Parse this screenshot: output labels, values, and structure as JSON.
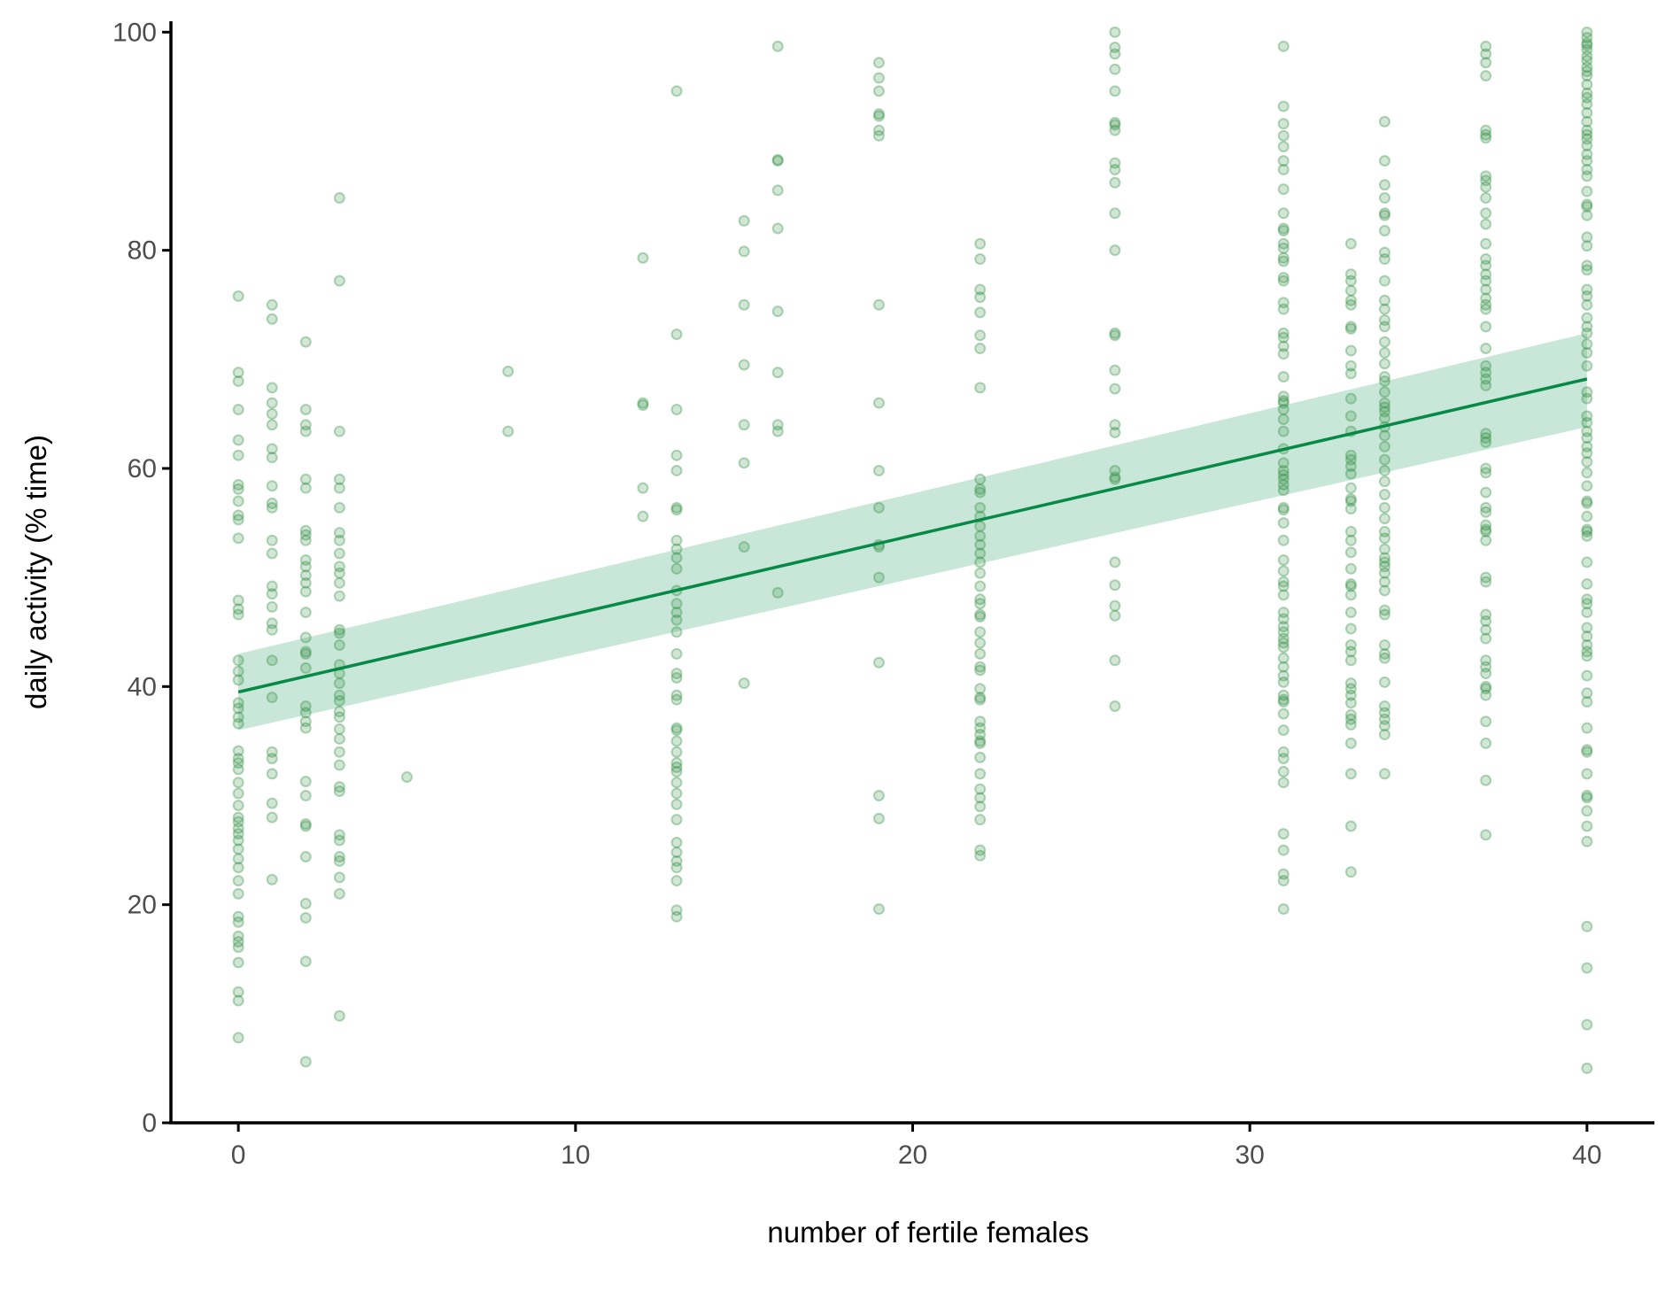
{
  "chart_data": {
    "type": "scatter",
    "title": "",
    "xlabel": "number of fertile females",
    "ylabel": "daily activity (% time)",
    "xlim": [
      -2,
      42
    ],
    "ylim": [
      0,
      101
    ],
    "x_ticks": [
      0,
      10,
      20,
      30,
      40
    ],
    "x_tick_labels": [
      "0",
      "10",
      "20",
      "30",
      "40"
    ],
    "y_ticks": [
      0,
      20,
      40,
      60,
      80,
      100
    ],
    "y_tick_labels": [
      "0",
      "20",
      "40",
      "60",
      "80",
      "100"
    ],
    "grid": false,
    "legend": "none",
    "colors": {
      "points": "#2e8b3e",
      "fit_line": "#078a47",
      "confidence_band": "#bfe3d1"
    },
    "fit": {
      "type": "linear",
      "x": [
        0,
        40
      ],
      "y": [
        39.5,
        68.2
      ],
      "ci_lower": [
        36.0,
        63.8
      ],
      "ci_upper": [
        43.0,
        72.4
      ]
    },
    "points": [
      {
        "x": 0,
        "y": [
          75.8,
          68.8,
          68.0,
          65.4,
          62.6,
          61.2,
          58.5,
          58.1,
          57.0,
          55.7,
          55.3,
          53.6,
          47.9,
          47.1,
          46.6,
          42.4,
          41.4,
          40.6,
          38.5,
          38.0,
          37.2,
          36.6,
          34.1,
          33.4,
          33.0,
          32.4,
          31.2,
          30.2,
          29.1,
          28.0,
          27.6,
          27.0,
          26.5,
          25.9,
          25.1,
          24.2,
          23.4,
          22.2,
          21.0,
          18.9,
          18.4,
          17.1,
          16.6,
          16.1,
          14.7,
          12.0,
          11.2,
          7.8
        ]
      },
      {
        "x": 1,
        "y": [
          75.0,
          73.7,
          67.4,
          66.0,
          65.0,
          64.0,
          61.8,
          61.0,
          58.4,
          56.8,
          56.4,
          53.4,
          52.2,
          49.2,
          48.5,
          47.3,
          45.8,
          45.2,
          42.4,
          39.0,
          34.0,
          33.4,
          32.0,
          29.3,
          28.0,
          22.3
        ]
      },
      {
        "x": 2,
        "y": [
          71.6,
          65.4,
          64.0,
          63.4,
          59.0,
          58.2,
          54.3,
          53.9,
          53.4,
          51.6,
          51.0,
          50.2,
          49.5,
          48.7,
          46.8,
          44.5,
          43.2,
          43.0,
          41.7,
          38.2,
          37.6,
          36.8,
          36.2,
          31.3,
          30.0,
          27.4,
          27.2,
          24.4,
          20.1,
          18.8,
          14.8,
          5.6
        ]
      },
      {
        "x": 3,
        "y": [
          84.8,
          77.2,
          63.4,
          59.0,
          58.2,
          56.4,
          54.1,
          53.4,
          52.2,
          51.0,
          50.4,
          49.5,
          48.3,
          45.2,
          44.9,
          43.8,
          42.0,
          41.2,
          40.3,
          39.2,
          38.7,
          37.7,
          37.2,
          36.1,
          35.2,
          34.0,
          32.8,
          30.8,
          30.4,
          26.4,
          25.9,
          24.4,
          24.0,
          22.5,
          21.0,
          9.8
        ]
      },
      {
        "x": 5,
        "y": [
          31.7
        ]
      },
      {
        "x": 8,
        "y": [
          68.9,
          63.4
        ]
      },
      {
        "x": 12,
        "y": [
          79.3,
          66.0,
          65.8,
          58.2,
          55.6
        ]
      },
      {
        "x": 13,
        "y": [
          94.6,
          72.3,
          65.4,
          61.2,
          59.8,
          56.4,
          56.2,
          53.4,
          52.6,
          51.8,
          50.8,
          48.8,
          47.6,
          46.8,
          46.1,
          45.0,
          43.0,
          41.2,
          40.8,
          39.2,
          38.8,
          36.2,
          36.0,
          35.0,
          34.0,
          33.0,
          32.6,
          32.2,
          31.2,
          30.2,
          29.2,
          27.8,
          25.7,
          24.8,
          24.0,
          23.4,
          22.2,
          19.5,
          18.9
        ]
      },
      {
        "x": 15,
        "y": [
          82.7,
          79.9,
          75.0,
          69.5,
          64.0,
          60.5,
          52.8,
          40.3
        ]
      },
      {
        "x": 16,
        "y": [
          98.7,
          88.3,
          88.2,
          85.5,
          82.0,
          74.4,
          68.8,
          64.0,
          63.4,
          48.6
        ]
      },
      {
        "x": 19,
        "y": [
          97.2,
          95.8,
          94.6,
          92.3,
          92.5,
          91.0,
          90.5,
          75.0,
          66.0,
          59.8,
          56.4,
          53.0,
          52.8,
          50.0,
          42.2,
          30.0,
          27.9,
          19.6
        ]
      },
      {
        "x": 22,
        "y": [
          80.6,
          79.2,
          76.4,
          75.7,
          74.3,
          72.2,
          71.0,
          67.4,
          59.0,
          58.1,
          57.8,
          56.4,
          55.6,
          54.7,
          53.8,
          53.0,
          52.2,
          51.4,
          50.4,
          49.2,
          48.0,
          47.6,
          46.6,
          46.4,
          45.0,
          44.0,
          43.0,
          41.8,
          41.5,
          39.8,
          39.0,
          38.8,
          36.8,
          36.2,
          35.6,
          35.0,
          34.8,
          33.5,
          32.0,
          30.6,
          29.8,
          29.0,
          27.8,
          25.0,
          24.5
        ]
      },
      {
        "x": 26,
        "y": [
          100.0,
          98.6,
          98.0,
          96.6,
          94.6,
          91.7,
          91.5,
          91.0,
          88.0,
          87.4,
          86.2,
          83.4,
          80.0,
          72.2,
          72.4,
          69.0,
          67.3,
          64.0,
          63.3,
          59.8,
          59.2,
          59.0,
          51.4,
          49.3,
          47.4,
          46.5,
          42.4,
          38.2
        ]
      },
      {
        "x": 31,
        "y": [
          98.7,
          93.2,
          91.6,
          90.5,
          89.5,
          88.2,
          87.4,
          85.6,
          83.4,
          82.0,
          81.8,
          80.6,
          80.2,
          79.3,
          79.0,
          77.5,
          77.2,
          75.2,
          74.6,
          72.4,
          72.0,
          71.2,
          70.5,
          68.4,
          66.6,
          66.2,
          66.0,
          65.4,
          64.5,
          63.4,
          61.8,
          60.5,
          59.8,
          59.4,
          59.0,
          58.5,
          58.0,
          56.2,
          56.4,
          55.0,
          53.4,
          51.6,
          50.6,
          49.6,
          49.2,
          48.4,
          46.8,
          46.2,
          45.5,
          45.0,
          44.4,
          44.0,
          43.6,
          42.6,
          41.8,
          41.0,
          40.4,
          39.2,
          38.8,
          38.6,
          37.5,
          36.0,
          34.0,
          33.4,
          32.2,
          31.2,
          26.5,
          25.0,
          22.8,
          22.2,
          19.6
        ]
      },
      {
        "x": 33,
        "y": [
          80.6,
          77.8,
          77.2,
          76.3,
          75.4,
          75.0,
          73.0,
          72.8,
          70.8,
          69.4,
          68.7,
          66.4,
          64.8,
          63.4,
          61.2,
          60.8,
          60.2,
          59.5,
          58.2,
          57.2,
          57.0,
          56.3,
          54.2,
          53.4,
          52.3,
          50.8,
          49.4,
          49.2,
          48.4,
          46.8,
          45.3,
          43.8,
          43.2,
          42.4,
          40.3,
          39.8,
          39.2,
          38.5,
          37.4,
          37.0,
          36.5,
          34.8,
          32.0,
          27.2,
          23.0
        ]
      },
      {
        "x": 34,
        "y": [
          91.8,
          88.2,
          86.0,
          84.8,
          83.4,
          83.2,
          81.8,
          79.8,
          79.2,
          77.2,
          75.4,
          74.6,
          73.6,
          73.0,
          71.6,
          70.6,
          69.6,
          68.4,
          68.0,
          67.0,
          66.0,
          65.6,
          65.2,
          64.6,
          63.8,
          63.0,
          62.0,
          60.8,
          59.8,
          58.8,
          57.6,
          56.4,
          55.4,
          54.2,
          53.6,
          52.6,
          51.8,
          51.4,
          51.0,
          50.4,
          49.6,
          48.8,
          47.0,
          46.6,
          43.8,
          43.0,
          42.6,
          40.4,
          38.2,
          37.6,
          37.0,
          36.4,
          35.6,
          32.0
        ]
      },
      {
        "x": 37,
        "y": [
          98.7,
          98.0,
          97.2,
          96.0,
          91.0,
          90.6,
          90.3,
          86.8,
          86.4,
          85.8,
          84.8,
          83.4,
          82.4,
          80.6,
          79.2,
          78.6,
          77.8,
          77.2,
          76.4,
          75.6,
          75.0,
          74.6,
          73.0,
          71.0,
          69.4,
          68.8,
          68.2,
          67.6,
          63.2,
          62.8,
          62.4,
          60.0,
          59.6,
          57.8,
          56.4,
          56.0,
          54.8,
          54.4,
          54.2,
          53.4,
          50.0,
          49.6,
          46.6,
          46.0,
          45.2,
          44.4,
          42.4,
          41.8,
          41.2,
          40.0,
          39.8,
          39.2,
          36.8,
          34.8,
          31.4,
          26.4
        ]
      },
      {
        "x": 40,
        "y": [
          100.0,
          99.5,
          99.0,
          98.8,
          98.4,
          97.8,
          97.4,
          96.8,
          96.4,
          96.0,
          95.2,
          94.4,
          94.0,
          93.4,
          92.6,
          91.8,
          91.0,
          90.6,
          90.2,
          89.6,
          88.8,
          88.2,
          87.4,
          86.8,
          85.4,
          84.2,
          84.0,
          83.2,
          81.2,
          80.4,
          78.6,
          78.2,
          76.4,
          75.8,
          75.0,
          73.8,
          73.0,
          72.4,
          71.4,
          70.6,
          69.4,
          67.0,
          66.4,
          64.8,
          64.2,
          63.4,
          62.8,
          62.0,
          61.4,
          60.6,
          59.6,
          58.4,
          57.0,
          56.8,
          55.6,
          54.4,
          54.2,
          53.8,
          51.4,
          49.4,
          48.0,
          47.6,
          46.8,
          45.4,
          44.6,
          43.8,
          43.2,
          42.8,
          41.0,
          39.4,
          38.6,
          36.2,
          34.2,
          34.0,
          32.0,
          30.0,
          29.8,
          28.6,
          27.2,
          25.8,
          18.0,
          14.2,
          9.0,
          5.0
        ]
      }
    ]
  }
}
